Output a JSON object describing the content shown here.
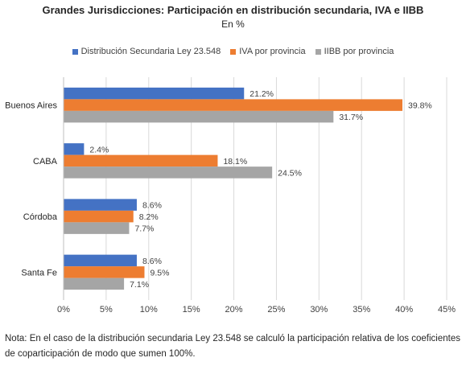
{
  "chart_data": {
    "type": "bar",
    "orientation": "horizontal",
    "title": "Grandes Jurisdicciones: Participación en distribución secundaria, IVA e IIBB",
    "subtitle": "En %",
    "categories": [
      "Buenos Aires",
      "CABA",
      "Córdoba",
      "Santa Fe"
    ],
    "series": [
      {
        "name": "Distribución Secundaria Ley 23.548",
        "color": "#4472C4",
        "values": [
          21.2,
          2.4,
          8.6,
          8.6
        ]
      },
      {
        "name": "IVA por provincia",
        "color": "#ED7D31",
        "values": [
          39.8,
          18.1,
          8.2,
          9.5
        ]
      },
      {
        "name": "IIBB por provincia",
        "color": "#A5A5A5",
        "values": [
          31.7,
          24.5,
          7.7,
          7.1
        ]
      }
    ],
    "value_suffix": "%",
    "xlim": [
      0,
      45
    ],
    "xticks": [
      "0%",
      "5%",
      "10%",
      "15%",
      "20%",
      "25%",
      "30%",
      "35%",
      "40%",
      "45%"
    ],
    "grid": "vertical",
    "legend_position": "top"
  },
  "note": "Nota: En el caso de la distribución secundaria Ley 23.548 se calculó la participación relativa de los coeficientes de coparticipación de modo que sumen 100%."
}
